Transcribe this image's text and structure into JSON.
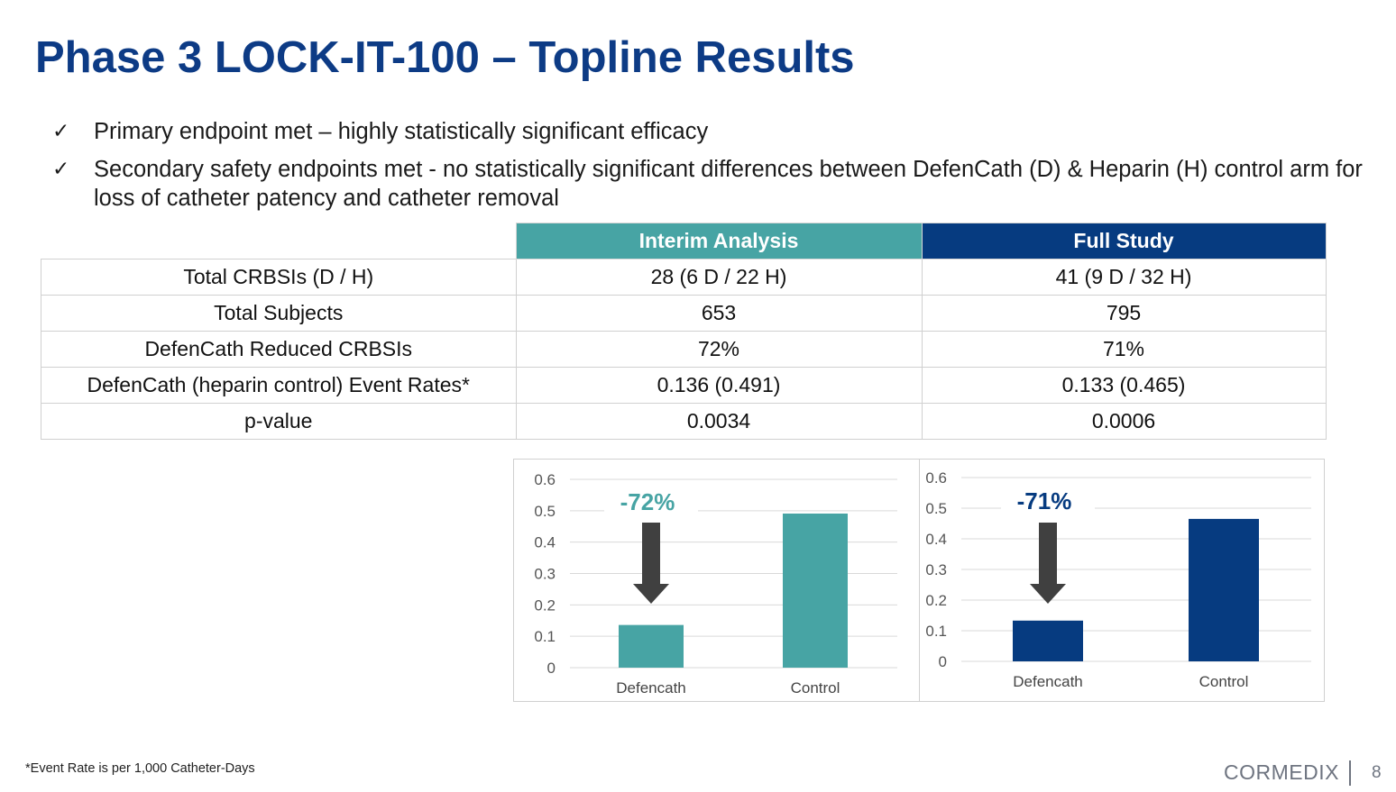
{
  "slide": {
    "title": "Phase 3 LOCK-IT-100 – Topline Results",
    "bullets": [
      "Primary endpoint met – highly statistically significant efficacy",
      "Secondary safety endpoints met - no statistically significant differences between DefenCath (D) & Heparin (H) control arm for loss of catheter patency and catheter removal"
    ],
    "check_glyph": "✓",
    "footnote": "*Event Rate is per 1,000 Catheter-Days",
    "brand": "CORMEDIX",
    "page_number": "8"
  },
  "table": {
    "headers": [
      "",
      "Interim Analysis",
      "Full Study"
    ],
    "rows": [
      [
        "Total CRBSIs (D / H)",
        "28 (6 D / 22 H)",
        "41 (9 D / 32 H)"
      ],
      [
        "Total Subjects",
        "653",
        "795"
      ],
      [
        "DefenCath Reduced CRBSIs",
        "72%",
        "71%"
      ],
      [
        "DefenCath (heparin control) Event Rates*",
        "0.136 (0.491)",
        "0.133 (0.465)"
      ],
      [
        "p-value",
        "0.0034",
        "0.0006"
      ]
    ],
    "colors": {
      "interim_header": "#47a4a4",
      "full_header": "#063b80"
    }
  },
  "chart_data": [
    {
      "type": "bar",
      "categories": [
        "Defencath",
        "Control"
      ],
      "values": [
        0.136,
        0.491
      ],
      "ylim": [
        0,
        0.6
      ],
      "yticks": [
        "0",
        "0.1",
        "0.2",
        "0.3",
        "0.4",
        "0.5",
        "0.6"
      ],
      "annotation": "-72%",
      "bar_color": "#47a4a4",
      "annotation_color": "#47a4a4",
      "grid": true
    },
    {
      "type": "bar",
      "categories": [
        "Defencath",
        "Control"
      ],
      "values": [
        0.133,
        0.465
      ],
      "ylim": [
        0,
        0.6
      ],
      "yticks": [
        "0",
        "0.1",
        "0.2",
        "0.3",
        "0.4",
        "0.5",
        "0.6"
      ],
      "annotation": "-71%",
      "bar_color": "#063b80",
      "annotation_color": "#063b80",
      "grid": true
    }
  ]
}
